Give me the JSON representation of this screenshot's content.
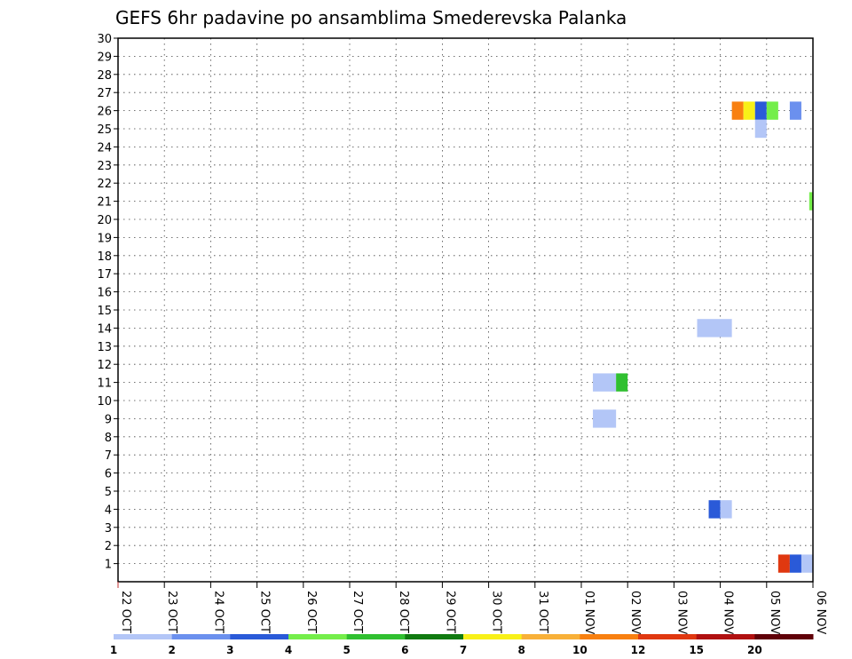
{
  "chart_data": {
    "type": "heatmap",
    "title": "GEFS 6hr padavine po ansamblima Smederevska Palanka",
    "xlabel": "",
    "ylabel": "",
    "x_ticks": [
      "22 OCT",
      "23 OCT",
      "24 OCT",
      "25 OCT",
      "26 OCT",
      "27 OCT",
      "28 OCT",
      "29 OCT",
      "30 OCT",
      "31 OCT",
      "01 NOV",
      "02 NOV",
      "03 NOV",
      "04 NOV",
      "05 NOV",
      "06 NOV"
    ],
    "x_range_days": [
      0,
      15
    ],
    "y_ticks": [
      1,
      2,
      3,
      4,
      5,
      6,
      7,
      8,
      9,
      10,
      11,
      12,
      13,
      14,
      15,
      16,
      17,
      18,
      19,
      20,
      21,
      22,
      23,
      24,
      25,
      26,
      27,
      28,
      29,
      30
    ],
    "y_range": [
      0,
      30
    ],
    "grid": true,
    "legend": {
      "placement": "bottom",
      "labels": [
        "1",
        "2",
        "3",
        "4",
        "5",
        "6",
        "7",
        "8",
        "10",
        "12",
        "15",
        "20"
      ],
      "colors": [
        "#b3c6f7",
        "#6b90ee",
        "#2a5ad8",
        "#74ee4a",
        "#30c030",
        "#107a10",
        "#f8f018",
        "#f8b038",
        "#f88010",
        "#e03810",
        "#b01010",
        "#600008"
      ]
    },
    "cells": [
      {
        "member": 26,
        "day_start": 13.25,
        "day_end": 13.5,
        "color": "#f88010"
      },
      {
        "member": 26,
        "day_start": 13.5,
        "day_end": 13.75,
        "color": "#f8f018"
      },
      {
        "member": 26,
        "day_start": 13.75,
        "day_end": 14.0,
        "color": "#2a5ad8"
      },
      {
        "member": 26,
        "day_start": 14.0,
        "day_end": 14.25,
        "color": "#74ee4a"
      },
      {
        "member": 26,
        "day_start": 14.5,
        "day_end": 14.75,
        "color": "#6b90ee"
      },
      {
        "member": 25,
        "day_start": 13.75,
        "day_end": 14.0,
        "color": "#b3c6f7"
      },
      {
        "member": 21,
        "day_start": 14.92,
        "day_end": 15.0,
        "color": "#74ee4a"
      },
      {
        "member": 14,
        "day_start": 12.5,
        "day_end": 13.25,
        "color": "#b3c6f7"
      },
      {
        "member": 11,
        "day_start": 10.25,
        "day_end": 10.75,
        "color": "#b3c6f7"
      },
      {
        "member": 11,
        "day_start": 10.75,
        "day_end": 11.0,
        "color": "#30c030"
      },
      {
        "member": 9,
        "day_start": 10.25,
        "day_end": 10.75,
        "color": "#b3c6f7"
      },
      {
        "member": 4,
        "day_start": 12.75,
        "day_end": 13.0,
        "color": "#2a5ad8"
      },
      {
        "member": 4,
        "day_start": 13.0,
        "day_end": 13.25,
        "color": "#b3c6f7"
      },
      {
        "member": 1,
        "day_start": 14.25,
        "day_end": 14.5,
        "color": "#e03810"
      },
      {
        "member": 1,
        "day_start": 14.5,
        "day_end": 14.75,
        "color": "#2a5ad8"
      },
      {
        "member": 1,
        "day_start": 14.75,
        "day_end": 15.0,
        "color": "#b3c6f7"
      }
    ]
  }
}
